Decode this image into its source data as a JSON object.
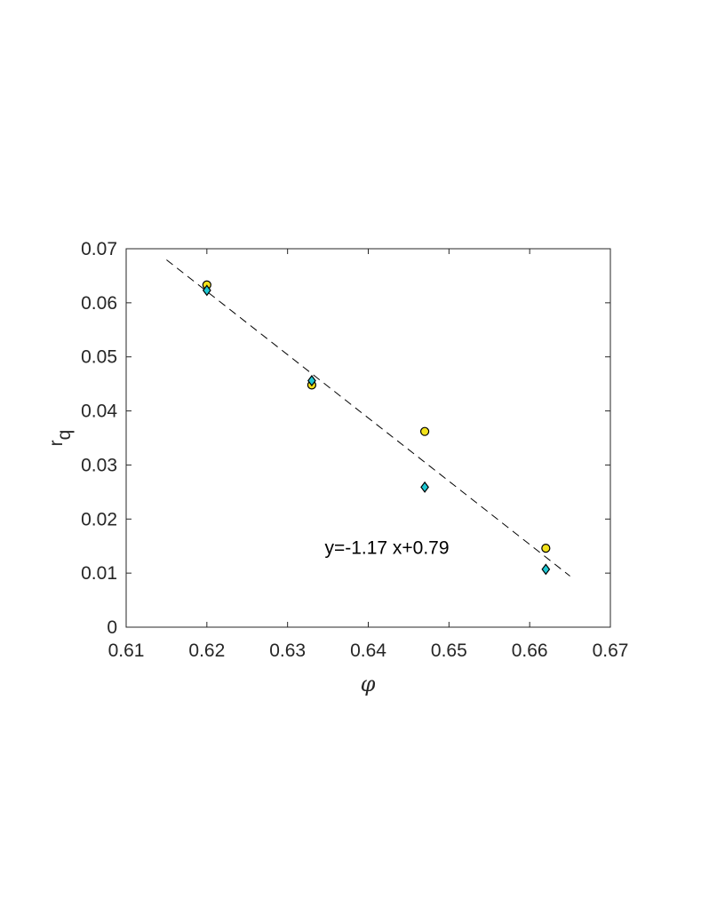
{
  "chart_data": {
    "type": "scatter",
    "xlabel": "φ",
    "ylabel_main": "r",
    "ylabel_sub": "q",
    "xlim": [
      0.61,
      0.67
    ],
    "ylim": [
      0,
      0.07
    ],
    "x_ticks": [
      "0.61",
      "0.62",
      "0.63",
      "0.64",
      "0.65",
      "0.66",
      "0.67"
    ],
    "y_ticks": [
      "0",
      "0.01",
      "0.02",
      "0.03",
      "0.04",
      "0.05",
      "0.06",
      "0.07"
    ],
    "grid": false,
    "series": [
      {
        "marker": "circle",
        "color": "#f2e21b",
        "points": [
          {
            "x": 0.62,
            "y": 0.0633
          },
          {
            "x": 0.633,
            "y": 0.0448
          },
          {
            "x": 0.647,
            "y": 0.0362
          },
          {
            "x": 0.662,
            "y": 0.0146
          }
        ]
      },
      {
        "marker": "diamond",
        "color": "#1ec8d3",
        "points": [
          {
            "x": 0.62,
            "y": 0.0623
          },
          {
            "x": 0.633,
            "y": 0.0456
          },
          {
            "x": 0.647,
            "y": 0.0259
          },
          {
            "x": 0.662,
            "y": 0.0107
          }
        ]
      }
    ],
    "fit_line": {
      "style": "dashed",
      "color": "#000000",
      "slope": -1.17,
      "intercept": 0.7875,
      "x_range": [
        0.615,
        0.665
      ]
    },
    "annotation": {
      "text": "y=-1.17 x+0.79",
      "x": 0.6346,
      "y": 0.0147
    }
  }
}
